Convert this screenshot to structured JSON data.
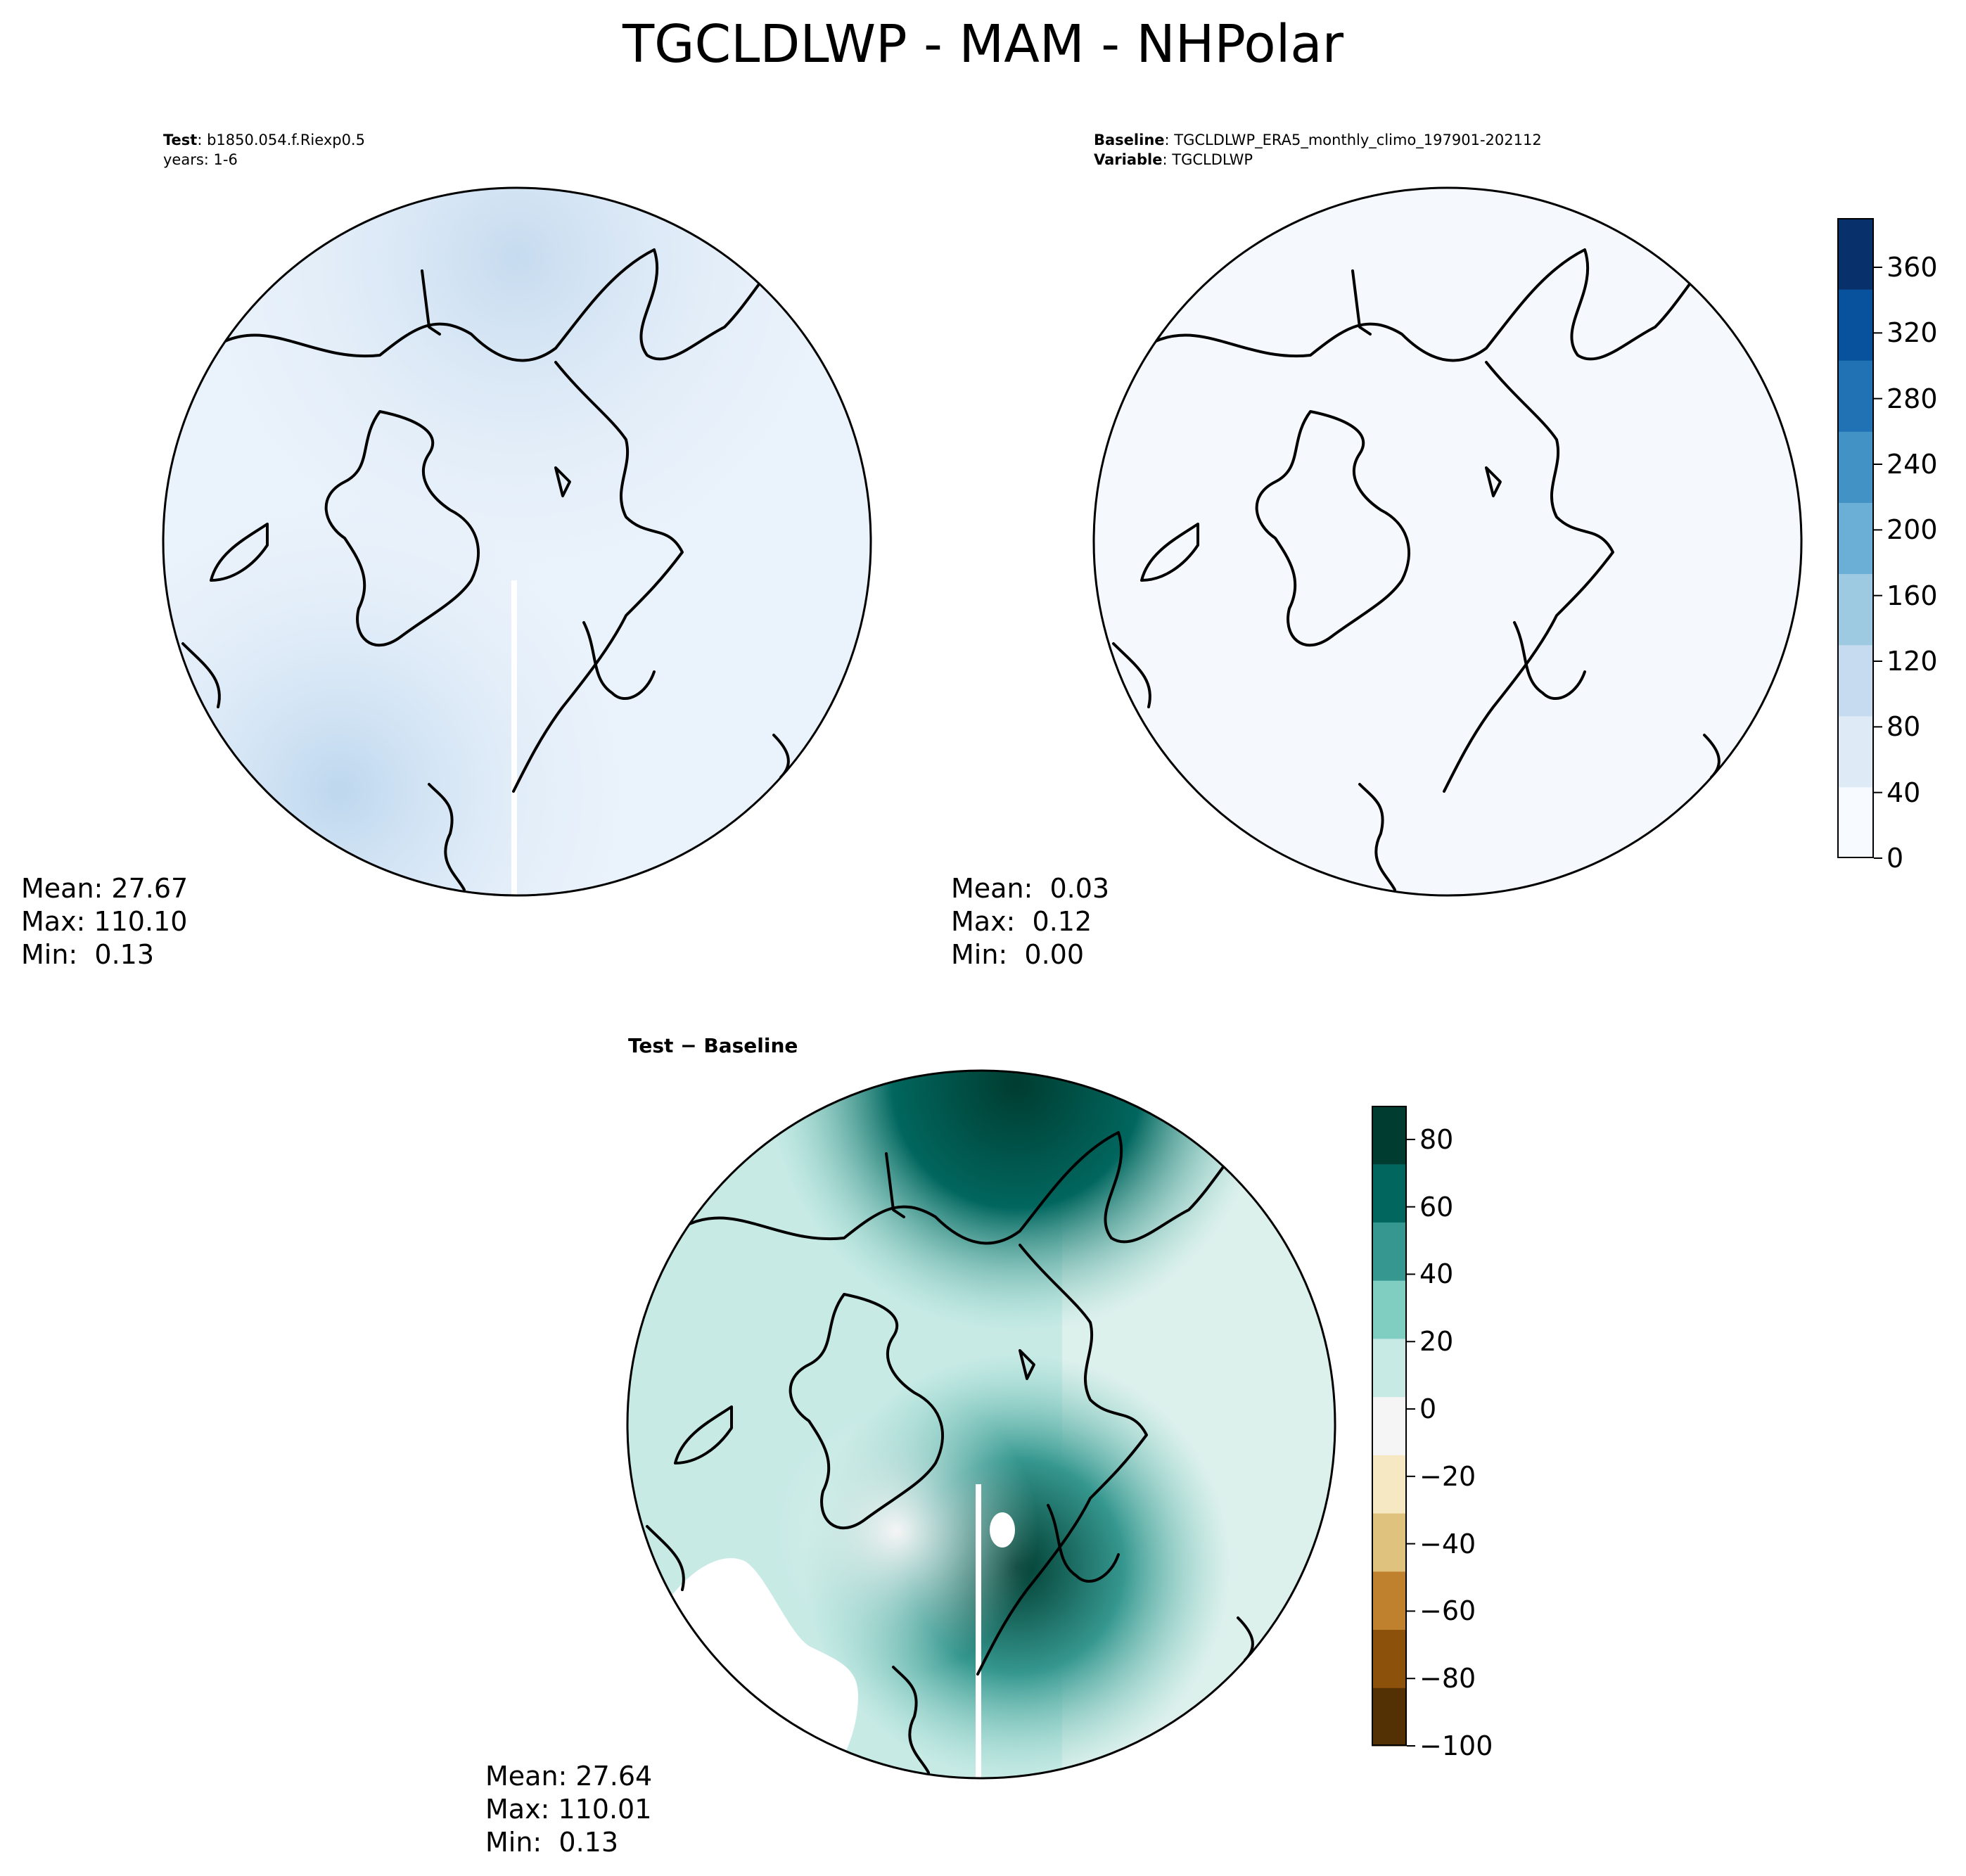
{
  "figure_title": "TGCLDLWP - MAM - NHPolar",
  "panels": [
    {
      "id": "test",
      "header_line1_key": "Test",
      "header_line1_value": "b1850.054.f.Riexp0.5",
      "header_line2": "years: 1-6",
      "stats": {
        "mean": "Mean: 27.67",
        "max": "Max: 110.10",
        "min": "Min:  0.13"
      },
      "fill_color": "#eaf2fb",
      "accent_color": "#c6dbef"
    },
    {
      "id": "baseline",
      "header_line1_key": "Baseline",
      "header_line1_value": "TGCLDLWP_ERA5_monthly_climo_197901-202112",
      "header_line2_key": "Variable",
      "header_line2_value": "TGCLDLWP",
      "stats": {
        "mean": "Mean:  0.03",
        "max": "Max:  0.12",
        "min": "Min:  0.00"
      },
      "fill_color": "#f5f9fe"
    },
    {
      "id": "difference",
      "title_left": "Test",
      "title_sep": "−",
      "title_right": "Baseline",
      "stats": {
        "mean": "Mean: 27.64",
        "max": "Max: 110.01",
        "min": "Min:  0.13"
      },
      "fill_color": "#c7eae5",
      "accent_color": "#01665e"
    }
  ],
  "colorbar_main": {
    "colormap": "Blues",
    "min": 0,
    "max": 390,
    "ticks": [
      "0",
      "40",
      "80",
      "120",
      "160",
      "200",
      "240",
      "280",
      "320",
      "360"
    ],
    "colors": [
      "#f7fbff",
      "#deebf7",
      "#c6dbef",
      "#9ecae1",
      "#6baed6",
      "#4292c6",
      "#2171b5",
      "#08519c",
      "#08306b"
    ]
  },
  "colorbar_diff": {
    "colormap": "BrBG",
    "min": -100,
    "max": 90,
    "ticks": [
      "80",
      "60",
      "40",
      "20",
      "0",
      "−20",
      "−40",
      "−60",
      "−80",
      "−100"
    ],
    "colors": [
      "#543005",
      "#8c510a",
      "#bf812d",
      "#dfc27d",
      "#f6e8c3",
      "#f5f5f5",
      "#c7eae5",
      "#80cdc1",
      "#35978f",
      "#01665e",
      "#003c30"
    ]
  }
}
